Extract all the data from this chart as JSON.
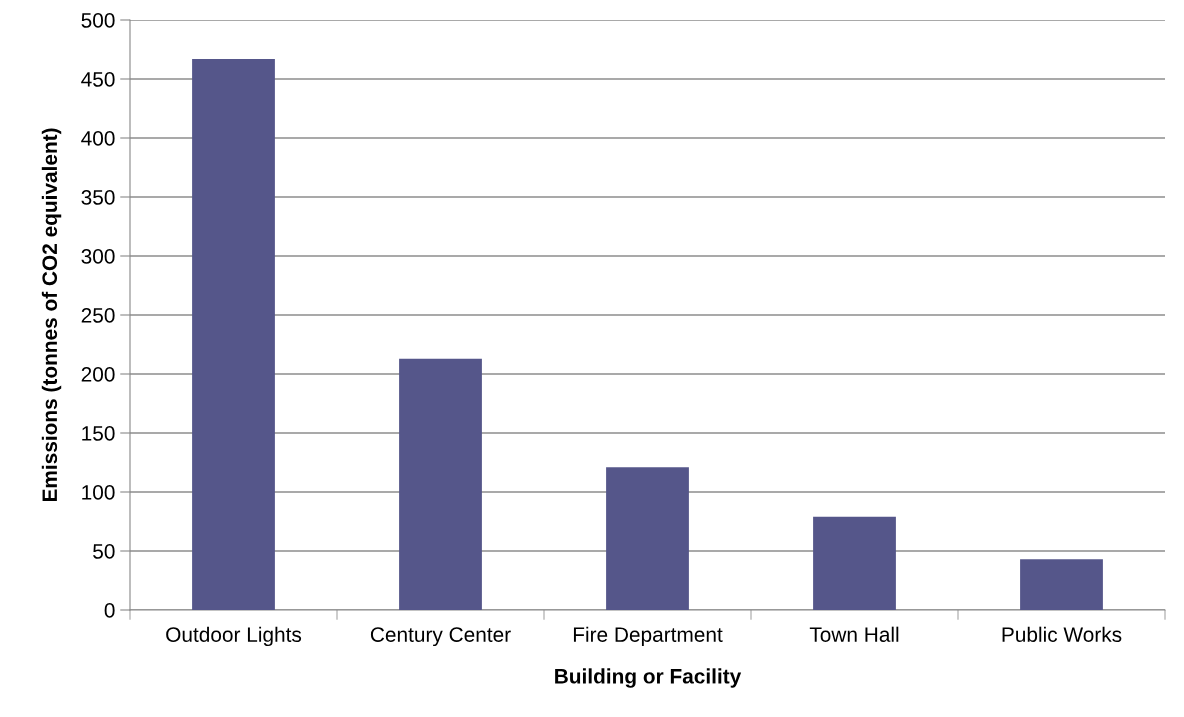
{
  "chart_data": {
    "type": "bar",
    "xlabel": "Building or Facility",
    "ylabel": "Emissions (tonnes of CO2 equivalent)",
    "categories": [
      "Outdoor Lights",
      "Century Center",
      "Fire Department",
      "Town Hall",
      "Public Works"
    ],
    "values": [
      467,
      213,
      121,
      79,
      43
    ],
    "color": "#55568a",
    "ylim": [
      0,
      500
    ],
    "yticks": [
      0,
      50,
      100,
      150,
      200,
      250,
      300,
      350,
      400,
      450,
      500
    ],
    "grid": "y"
  }
}
